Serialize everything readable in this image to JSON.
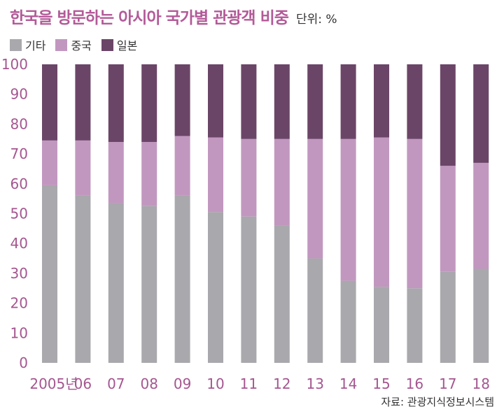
{
  "chart_data": {
    "type": "bar",
    "stacked": true,
    "title": "한국을 방문하는 아시아 국가별 관광객 비중",
    "unit_label": "단위: %",
    "categories": [
      "2005년",
      "06",
      "07",
      "08",
      "09",
      "10",
      "11",
      "12",
      "13",
      "14",
      "15",
      "16",
      "17",
      "18"
    ],
    "series": [
      {
        "name": "기타",
        "color": "#a9a8ad",
        "values": [
          59.5,
          56,
          53.5,
          52.5,
          56,
          50.5,
          49,
          46,
          35,
          27.5,
          25.5,
          25,
          30.5,
          31.5
        ]
      },
      {
        "name": "중국",
        "color": "#c197bf",
        "values": [
          15,
          18.5,
          20.5,
          21.5,
          20,
          25,
          26,
          29,
          40,
          47.5,
          50,
          50,
          35.5,
          35.5
        ]
      },
      {
        "name": "일본",
        "color": "#6b4568",
        "values": [
          25.5,
          25.5,
          26,
          26,
          24,
          24.5,
          25,
          25,
          25,
          25,
          24.5,
          25,
          34,
          33
        ]
      }
    ],
    "y_ticks": [
      0,
      10,
      20,
      30,
      40,
      50,
      60,
      70,
      80,
      90,
      100
    ],
    "ylim": [
      0,
      100
    ],
    "grid": false,
    "legend_position": "top-left"
  },
  "source": "자료: 관광지식정보시스템"
}
